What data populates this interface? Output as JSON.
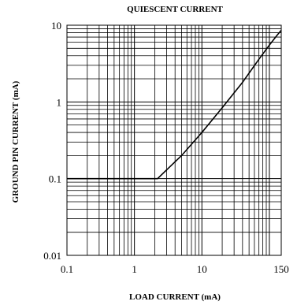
{
  "chart_data": {
    "type": "line",
    "title": "QUIESCENT CURRENT",
    "xlabel": "LOAD CURRENT (mA)",
    "ylabel": "GROUND PIN CURRENT (mA)",
    "x_scale": "log",
    "y_scale": "log",
    "xlim": [
      0.1,
      150
    ],
    "ylim": [
      0.01,
      10
    ],
    "grid": true,
    "x_ticks": [
      "0.1",
      "1",
      "10",
      "150"
    ],
    "y_ticks": [
      "0.01",
      "0.1",
      "1",
      "10"
    ],
    "series": [
      {
        "x": [
          0.1,
          0.5,
          1,
          2,
          2.2,
          3,
          5,
          8,
          10,
          20,
          40,
          70,
          100,
          130,
          150
        ],
        "y": [
          0.1,
          0.1,
          0.1,
          0.1,
          0.1,
          0.13,
          0.2,
          0.32,
          0.4,
          0.84,
          1.8,
          3.6,
          5.5,
          7.4,
          8.6
        ]
      }
    ]
  }
}
